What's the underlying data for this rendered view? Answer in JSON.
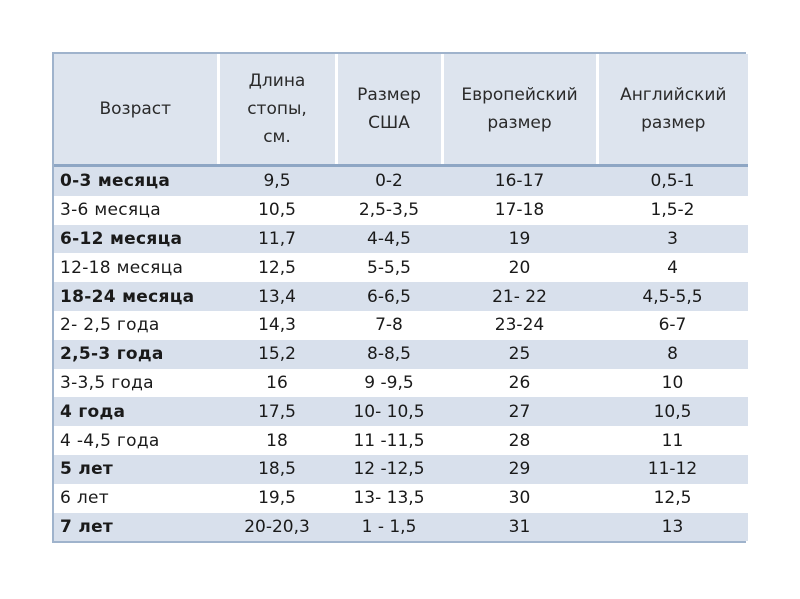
{
  "table": {
    "headers": [
      "Возраст",
      "Длина стопы, см.",
      "Размер США",
      "Европейский размер",
      "Английский размер"
    ],
    "header_lines": [
      [
        "Возраст"
      ],
      [
        "Длина",
        "стопы,",
        "см."
      ],
      [
        "Размер",
        "США"
      ],
      [
        "Европейский",
        "размер"
      ],
      [
        "Английский",
        "размер"
      ]
    ],
    "rows": [
      [
        "0-3 месяца",
        "9,5",
        "0-2",
        "16-17",
        "0,5-1"
      ],
      [
        "3-6 месяца",
        "10,5",
        "2,5-3,5",
        "17-18",
        "1,5-2"
      ],
      [
        "6-12 месяца",
        "11,7",
        "4-4,5",
        "19",
        "3"
      ],
      [
        "12-18 месяца",
        "12,5",
        "5-5,5",
        "20",
        "4"
      ],
      [
        "18-24 месяца",
        "13,4",
        "6-6,5",
        "21- 22",
        "4,5-5,5"
      ],
      [
        "2- 2,5 года",
        "14,3",
        "7-8",
        "23-24",
        "6-7"
      ],
      [
        "2,5-3 года",
        "15,2",
        "8-8,5",
        "25",
        "8"
      ],
      [
        "3-3,5 года",
        "16",
        "9 -9,5",
        "26",
        "10"
      ],
      [
        "4 года",
        "17,5",
        "10- 10,5",
        "27",
        "10,5"
      ],
      [
        "4 -4,5 года",
        "18",
        "11 -11,5",
        "28",
        "11"
      ],
      [
        "5 лет",
        "18,5",
        "12 -12,5",
        "29",
        "11-12"
      ],
      [
        "6 лет",
        "19,5",
        "13- 13,5",
        "30",
        "12,5"
      ],
      [
        "7 лет",
        "20-20,3",
        "1 - 1,5",
        "31",
        "13"
      ]
    ]
  },
  "colors": {
    "header_bg": "#dde4ee",
    "stripe_bg": "#d8e0ec",
    "border": "#9fb3cc"
  }
}
